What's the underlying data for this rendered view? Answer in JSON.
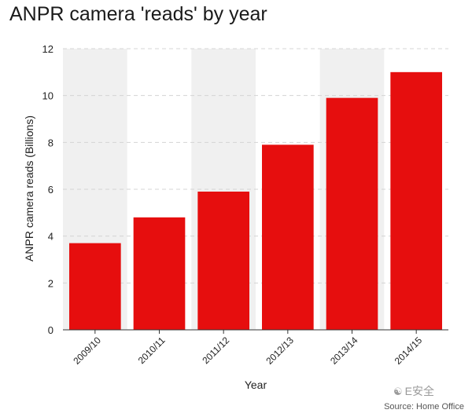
{
  "chart_data": {
    "type": "bar",
    "title": "ANPR camera 'reads' by year",
    "xlabel": "Year",
    "ylabel": "ANPR camera reads (Billions)",
    "categories": [
      "2009/10",
      "2010/11",
      "2011/12",
      "2012/13",
      "2013/14",
      "2014/15"
    ],
    "values": [
      3.7,
      4.8,
      5.9,
      7.9,
      9.9,
      11.0
    ],
    "ylim": [
      0,
      12
    ],
    "yticks": [
      0,
      2,
      4,
      6,
      8,
      10,
      12
    ],
    "grid": true,
    "legend": "none",
    "bar_color": "#e60e0e",
    "band_color": "#f0f0f0"
  },
  "watermark": {
    "text": "E安全",
    "icon": "wechat-icon"
  },
  "source": "Source: Home Office"
}
